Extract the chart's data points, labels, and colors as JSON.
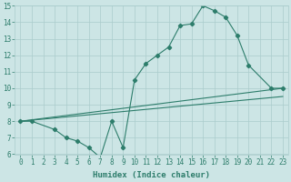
{
  "line1_x": [
    0,
    1,
    3,
    4,
    5,
    6,
    7,
    8,
    9,
    10,
    11,
    12,
    13,
    14,
    15,
    16,
    17,
    18,
    19,
    20,
    22,
    23
  ],
  "line1_y": [
    8.0,
    8.0,
    7.5,
    7.0,
    6.8,
    6.4,
    5.8,
    8.0,
    6.4,
    10.5,
    11.5,
    12.0,
    12.5,
    13.8,
    13.9,
    15.0,
    14.7,
    14.3,
    13.2,
    11.4,
    10.0,
    10.0
  ],
  "line2_x": [
    0,
    23
  ],
  "line2_y": [
    8.0,
    10.0
  ],
  "line3_x": [
    0,
    23
  ],
  "line3_y": [
    8.0,
    9.5
  ],
  "line_color": "#2d7d6b",
  "bg_color": "#cce5e5",
  "grid_color": "#aacccc",
  "xlabel": "Humidex (Indice chaleur)",
  "xlim": [
    -0.5,
    23.5
  ],
  "ylim": [
    6,
    15
  ],
  "xticks": [
    0,
    1,
    2,
    3,
    4,
    5,
    6,
    7,
    8,
    9,
    10,
    11,
    12,
    13,
    14,
    15,
    16,
    17,
    18,
    19,
    20,
    21,
    22,
    23
  ],
  "yticks": [
    6,
    7,
    8,
    9,
    10,
    11,
    12,
    13,
    14,
    15
  ],
  "xlabel_fontsize": 6.5,
  "tick_fontsize": 5.5
}
